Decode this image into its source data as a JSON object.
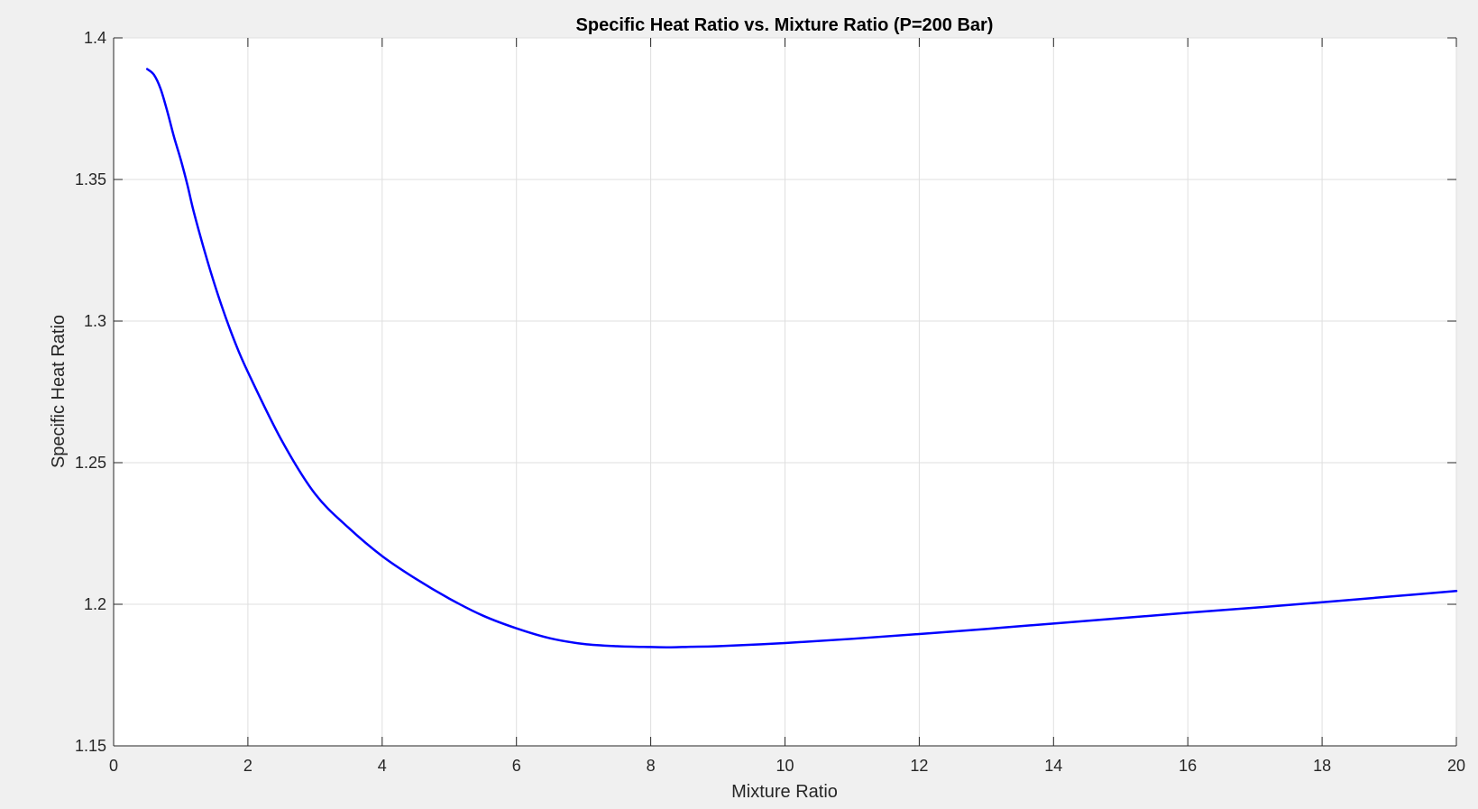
{
  "chart_data": {
    "type": "line",
    "title": "Specific Heat Ratio vs. Mixture Ratio (P=200 Bar)",
    "xlabel": "Mixture Ratio",
    "ylabel": "Specific Heat Ratio",
    "xlim": [
      0,
      20
    ],
    "ylim": [
      1.15,
      1.4
    ],
    "xticks": [
      0,
      2,
      4,
      6,
      8,
      10,
      12,
      14,
      16,
      18,
      20
    ],
    "xtick_labels": [
      "0",
      "2",
      "4",
      "6",
      "8",
      "10",
      "12",
      "14",
      "16",
      "18",
      "20"
    ],
    "yticks": [
      1.15,
      1.2,
      1.25,
      1.3,
      1.35,
      1.4
    ],
    "ytick_labels": [
      "1.15",
      "1.2",
      "1.25",
      "1.3",
      "1.35",
      "1.4"
    ],
    "grid": true,
    "legend": false,
    "series": [
      {
        "color": "#0000ff",
        "x": [
          0.5,
          0.6,
          0.7,
          0.8,
          0.9,
          1.0,
          1.1,
          1.2,
          1.4,
          1.6,
          1.8,
          2.0,
          2.5,
          3.0,
          3.5,
          4.0,
          4.5,
          5.0,
          5.5,
          6.0,
          6.5,
          7.0,
          7.5,
          8.0,
          8.3,
          8.6,
          9.0,
          10.0,
          11.0,
          12.0,
          13.0,
          14.0,
          15.0,
          16.0,
          17.0,
          18.0,
          19.0,
          20.0
        ],
        "y": [
          1.389,
          1.387,
          1.382,
          1.374,
          1.365,
          1.357,
          1.348,
          1.338,
          1.321,
          1.306,
          1.293,
          1.282,
          1.258,
          1.239,
          1.227,
          1.217,
          1.209,
          1.202,
          1.196,
          1.1915,
          1.188,
          1.186,
          1.1852,
          1.1849,
          1.1848,
          1.185,
          1.1852,
          1.1863,
          1.1878,
          1.1895,
          1.1913,
          1.1932,
          1.1951,
          1.197,
          1.1988,
          1.2007,
          1.2027,
          1.2047
        ]
      }
    ]
  }
}
